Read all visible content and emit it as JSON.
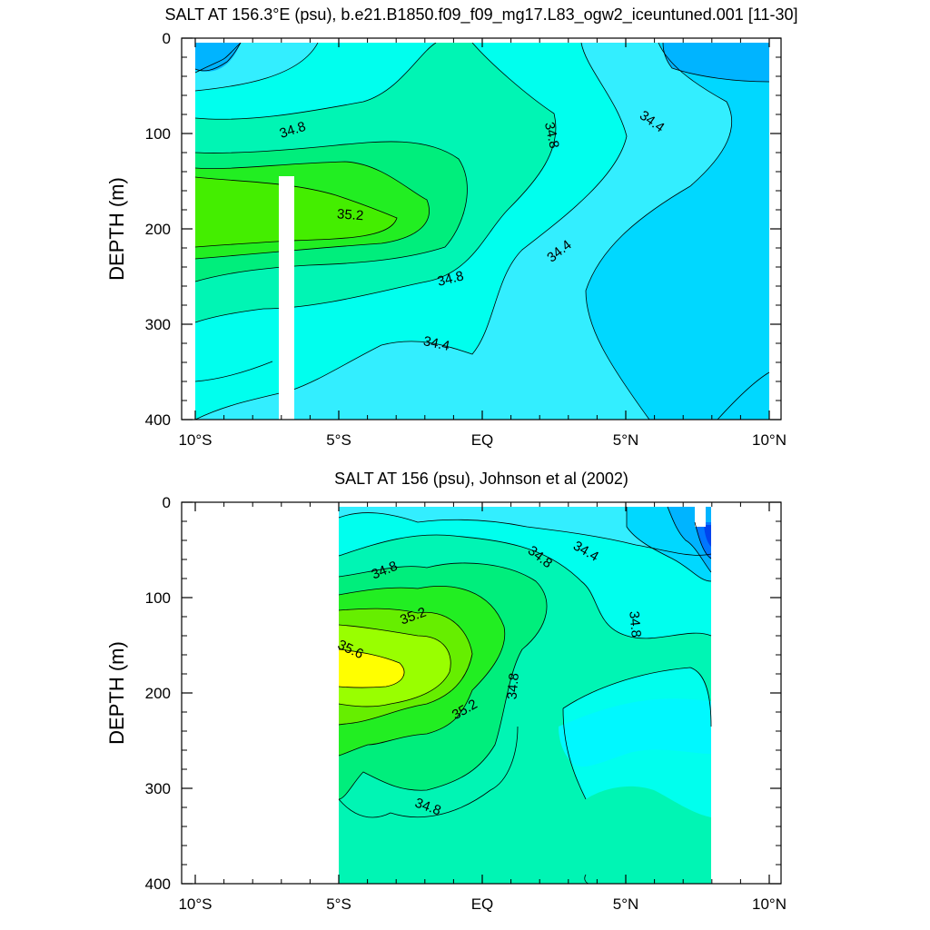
{
  "figure": {
    "background": "#ffffff"
  },
  "chart_data": [
    {
      "type": "contour",
      "title": "SALT AT 156.3°E (psu), b.e21.B1850.f09_f09_mg17.L83_ogw2_iceuntuned.001 [11-30]",
      "xlabel": "",
      "ylabel": "DEPTH (m)",
      "xlim": [
        -10,
        10
      ],
      "ylim": [
        400,
        0
      ],
      "xticks": [
        -10,
        -5,
        0,
        5,
        10
      ],
      "xtick_labels": [
        "10°S",
        "5°S",
        "EQ",
        "5°N",
        "10°N"
      ],
      "yticks": [
        0,
        100,
        200,
        300,
        400
      ],
      "ytick_labels": [
        "0",
        "100",
        "200",
        "300",
        "400"
      ],
      "data_xrange": [
        -10,
        10
      ],
      "data_yrange": [
        5,
        400
      ],
      "missing_columns": [
        [
          -7.1,
          -6.6,
          145,
          400
        ]
      ],
      "levels": [
        33.6,
        33.8,
        34.0,
        34.2,
        34.4,
        34.6,
        34.8,
        35.0,
        35.2,
        35.4,
        35.6
      ],
      "colors": {
        "33.6": "#0044ee",
        "33.8": "#0077ff",
        "34.0": "#00a8ff",
        "34.2": "#00c4ff",
        "34.4": "#00d8ff",
        "34.6": "#33eeff",
        "34.8": "#00ffee",
        "35.0": "#00f5b4",
        "35.2": "#00ee7c",
        "35.4": "#22ee22",
        "35.6": "#99ff00",
        "35.8": "#ffff00"
      },
      "contour_labels": [
        {
          "text": "34.8",
          "x": -6.6,
          "y": 97,
          "angle": -18
        },
        {
          "text": "34.8",
          "x": 2.4,
          "y": 102,
          "angle": 78
        },
        {
          "text": "34.4",
          "x": 5.9,
          "y": 88,
          "angle": 35
        },
        {
          "text": "35.2",
          "x": -4.6,
          "y": 186,
          "angle": 4
        },
        {
          "text": "34.4",
          "x": 2.7,
          "y": 224,
          "angle": -38
        },
        {
          "text": "34.8",
          "x": -1.1,
          "y": 253,
          "angle": -14
        },
        {
          "text": "34.4",
          "x": -1.6,
          "y": 321,
          "angle": 12
        }
      ]
    },
    {
      "type": "contour",
      "title": "SALT AT 156 (psu), Johnson et al (2002)",
      "xlabel": "",
      "ylabel": "DEPTH (m)",
      "xlim": [
        -10,
        10
      ],
      "ylim": [
        400,
        0
      ],
      "xticks": [
        -10,
        -5,
        0,
        5,
        10
      ],
      "xtick_labels": [
        "10°S",
        "5°S",
        "EQ",
        "5°N",
        "10°N"
      ],
      "yticks": [
        0,
        100,
        200,
        300,
        400
      ],
      "ytick_labels": [
        "0",
        "100",
        "200",
        "300",
        "400"
      ],
      "data_xrange": [
        -5,
        8
      ],
      "data_yrange": [
        5,
        400
      ],
      "levels": [
        33.6,
        33.8,
        34.0,
        34.2,
        34.4,
        34.6,
        34.8,
        35.0,
        35.2,
        35.4,
        35.6
      ],
      "contour_labels": [
        {
          "text": "34.8",
          "x": -3.4,
          "y": 72,
          "angle": -22
        },
        {
          "text": "34.8",
          "x": 2.0,
          "y": 58,
          "angle": 38
        },
        {
          "text": "34.4",
          "x": 3.6,
          "y": 52,
          "angle": 30
        },
        {
          "text": "35.2",
          "x": -2.4,
          "y": 120,
          "angle": -20
        },
        {
          "text": "34.8",
          "x": 5.3,
          "y": 128,
          "angle": 85
        },
        {
          "text": "35.6",
          "x": -4.6,
          "y": 155,
          "angle": 25
        },
        {
          "text": "35.2",
          "x": -0.6,
          "y": 218,
          "angle": -30
        },
        {
          "text": "34.8",
          "x": 1.1,
          "y": 193,
          "angle": -85
        },
        {
          "text": "34.8",
          "x": -1.9,
          "y": 320,
          "angle": 20
        }
      ]
    }
  ]
}
